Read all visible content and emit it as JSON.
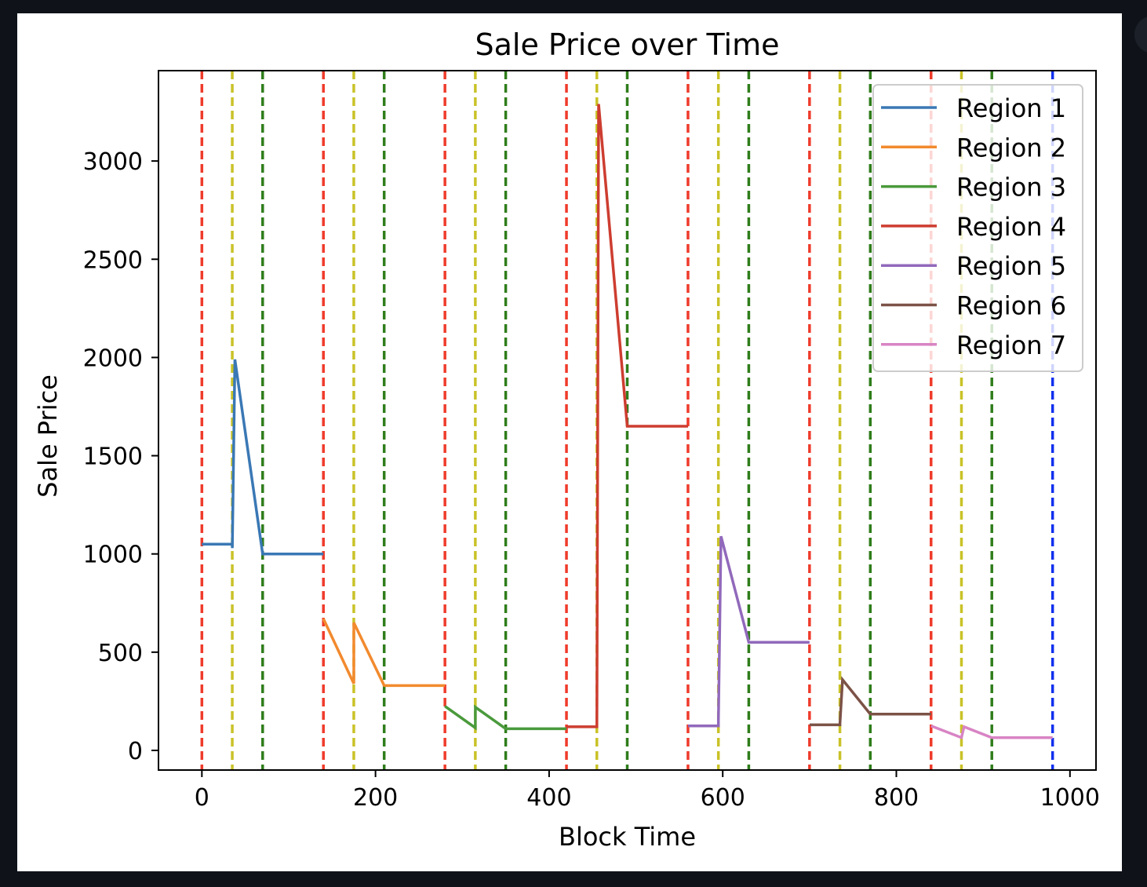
{
  "chart_data": {
    "type": "line",
    "title": "Sale Price over Time",
    "xlabel": "Block Time",
    "ylabel": "Sale Price",
    "xlim": [
      -50,
      1030
    ],
    "ylim": [
      -100,
      3460
    ],
    "xticks": [
      0,
      200,
      400,
      600,
      800,
      1000
    ],
    "yticks": [
      0,
      500,
      1000,
      1500,
      2000,
      2500,
      3000
    ],
    "grid": false,
    "legend_position": "top-right",
    "series": [
      {
        "name": "Region 1",
        "color": "#3a78b5",
        "x": [
          0,
          35,
          35,
          38,
          70,
          70,
          140
        ],
        "y": [
          1050,
          1050,
          1030,
          1990,
          1000,
          1000,
          1000
        ]
      },
      {
        "name": "Region 2",
        "color": "#f28a2e",
        "x": [
          140,
          175,
          175,
          210,
          280
        ],
        "y": [
          670,
          340,
          650,
          330,
          330
        ]
      },
      {
        "name": "Region 3",
        "color": "#4a9a3c",
        "x": [
          280,
          315,
          315,
          350,
          420
        ],
        "y": [
          225,
          115,
          220,
          110,
          110
        ]
      },
      {
        "name": "Region 4",
        "color": "#cd3d30",
        "x": [
          420,
          455,
          455,
          457,
          490,
          490,
          560
        ],
        "y": [
          120,
          120,
          130,
          3290,
          1650,
          1650,
          1650
        ]
      },
      {
        "name": "Region 5",
        "color": "#9169bb",
        "x": [
          560,
          595,
          595,
          598,
          630,
          700
        ],
        "y": [
          125,
          125,
          150,
          1090,
          550,
          550
        ]
      },
      {
        "name": "Region 6",
        "color": "#7c5247",
        "x": [
          700,
          735,
          735,
          738,
          770,
          840
        ],
        "y": [
          130,
          130,
          135,
          360,
          185,
          185
        ]
      },
      {
        "name": "Region 7",
        "color": "#d884c4",
        "x": [
          840,
          875,
          878,
          910,
          980
        ],
        "y": [
          125,
          65,
          120,
          65,
          65
        ]
      }
    ],
    "vlines": [
      {
        "x": 0,
        "color": "#ef3b2b"
      },
      {
        "x": 35,
        "color": "#c9c227"
      },
      {
        "x": 70,
        "color": "#2f7d1b"
      },
      {
        "x": 140,
        "color": "#ef3b2b"
      },
      {
        "x": 175,
        "color": "#c9c227"
      },
      {
        "x": 210,
        "color": "#2f7d1b"
      },
      {
        "x": 280,
        "color": "#ef3b2b"
      },
      {
        "x": 315,
        "color": "#c9c227"
      },
      {
        "x": 350,
        "color": "#2f7d1b"
      },
      {
        "x": 420,
        "color": "#ef3b2b"
      },
      {
        "x": 455,
        "color": "#c9c227"
      },
      {
        "x": 490,
        "color": "#2f7d1b"
      },
      {
        "x": 560,
        "color": "#ef3b2b"
      },
      {
        "x": 595,
        "color": "#c9c227"
      },
      {
        "x": 630,
        "color": "#2f7d1b"
      },
      {
        "x": 700,
        "color": "#ef3b2b"
      },
      {
        "x": 735,
        "color": "#c9c227"
      },
      {
        "x": 770,
        "color": "#2f7d1b"
      },
      {
        "x": 840,
        "color": "#ef3b2b"
      },
      {
        "x": 875,
        "color": "#c9c227"
      },
      {
        "x": 910,
        "color": "#2f7d1b"
      },
      {
        "x": 980,
        "color": "#1030ee"
      }
    ]
  }
}
